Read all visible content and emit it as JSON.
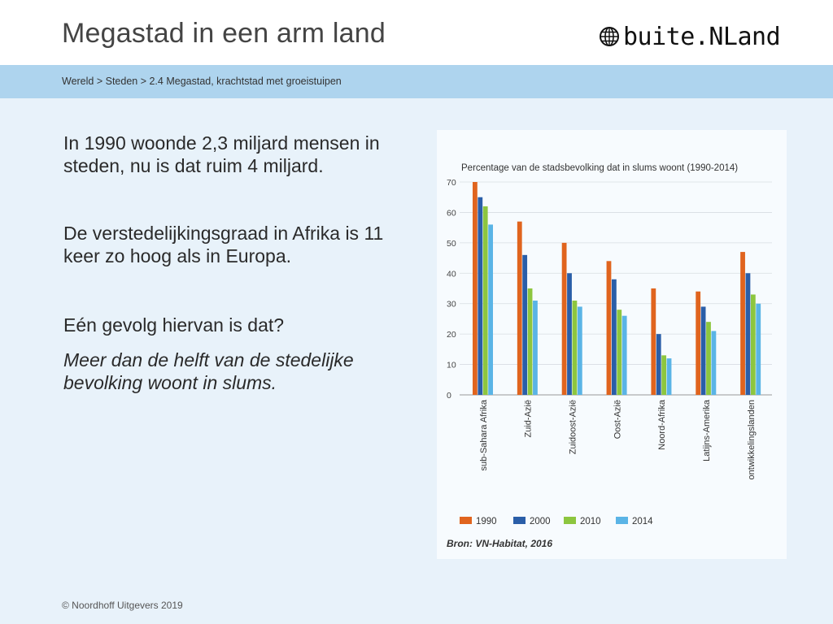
{
  "slide": {
    "title": "Megastad in een arm land",
    "logo_text": "buite.NLand",
    "logo_icon": "globe-icon",
    "breadcrumb": "Wereld > Steden > 2.4 Megastad, krachtstad met groeistuipen",
    "paragraph1": "In 1990 woonde 2,3 miljard mensen in steden, nu is dat ruim 4 miljard.",
    "paragraph2": "De verstedelijkingsgraad in Afrika is 11 keer zo hoog als in Europa.",
    "question": "Eén gevolg hiervan is dat?",
    "answer": "Meer dan de helft van de stedelijke bevolking woont in slums.",
    "footer": "© Noordhoff Uitgevers 2019"
  },
  "colors": {
    "s1990": "#e0641e",
    "s2000": "#2a5ea8",
    "s2010": "#8dc63f",
    "s2014": "#5ab4e6",
    "accent_bar": "#aed4ee",
    "content_bg": "#e8f2fa"
  },
  "chart_data": {
    "type": "bar",
    "title": "Percentage van de stadsbevolking dat in slums woont (1990-2014)",
    "source": "Bron: VN-Habitat, 2016",
    "categories": [
      "sub-Sahara Afrika",
      "Zuid-Azië",
      "Zuidoost-Azië",
      "Oost-Azië",
      "Noord-Afrika",
      "Latijns-Amerika",
      "ontwikkelingslanden"
    ],
    "series": [
      {
        "name": "1990",
        "values": [
          70,
          57,
          50,
          44,
          35,
          34,
          47
        ]
      },
      {
        "name": "2000",
        "values": [
          65,
          46,
          40,
          38,
          20,
          29,
          40
        ]
      },
      {
        "name": "2010",
        "values": [
          62,
          35,
          31,
          28,
          13,
          24,
          33
        ]
      },
      {
        "name": "2014",
        "values": [
          56,
          31,
          29,
          26,
          12,
          21,
          30
        ]
      }
    ],
    "yticks": [
      "0",
      "10",
      "20",
      "30",
      "40",
      "50",
      "60",
      "70"
    ],
    "ylim": [
      0,
      70
    ],
    "xlabel": "",
    "ylabel": "",
    "grid": true,
    "legend": "bottom"
  }
}
